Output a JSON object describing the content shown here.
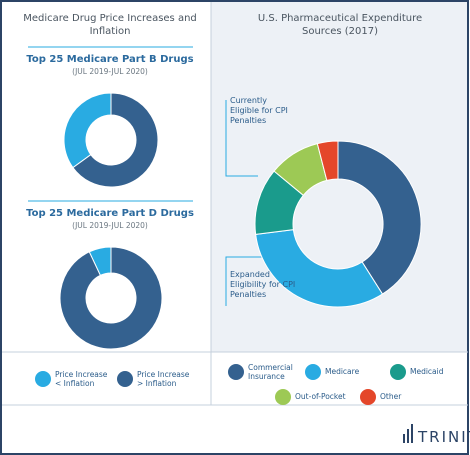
{
  "left_title": "Medicare Drug Price Increases and Inflation",
  "right_title": "U.S. Pharmaceutical Expenditure Sources (2017)",
  "annotations": [
    "Currently Eligible for CPI Penalties",
    "Expanded Eligibility for CPI Penalties"
  ],
  "logo": "TRINITY",
  "chart_data": [
    {
      "type": "pie",
      "title": "Top 25 Medicare Part B Drugs",
      "subtitle": "(JUL 2019-JUL 2020)",
      "direction": "counterclockwise",
      "categories": [
        "Price Increase < Inflation",
        "Price Increase > Inflation"
      ],
      "values": [
        35,
        65
      ],
      "colors": [
        "#29abe2",
        "#34618f"
      ]
    },
    {
      "type": "pie",
      "title": "Top 25 Medicare Part D Drugs",
      "subtitle": "(JUL 2019-JUL 2020)",
      "direction": "counterclockwise",
      "categories": [
        "Price Increase < Inflation",
        "Price Increase > Inflation"
      ],
      "values": [
        7,
        93
      ],
      "colors": [
        "#29abe2",
        "#34618f"
      ]
    },
    {
      "type": "pie",
      "direction": "clockwise",
      "categories": [
        "Commercial Insurance",
        "Medicare",
        "Medicaid",
        "Out-of-Pocket",
        "Other"
      ],
      "values": [
        41,
        32,
        13,
        10,
        4
      ],
      "colors": [
        "#34618f",
        "#29abe2",
        "#1a9b8c",
        "#9dc955",
        "#e4472a"
      ]
    }
  ]
}
